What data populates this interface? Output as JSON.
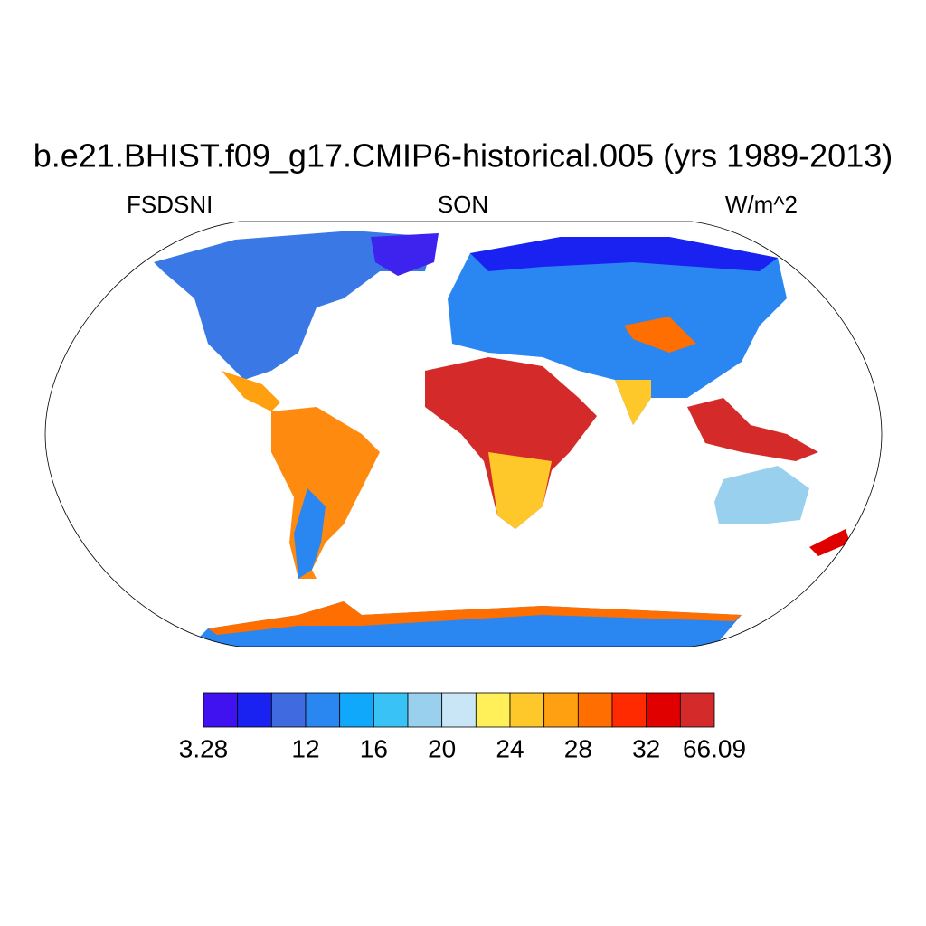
{
  "title": "b.e21.BHIST.f09_g17.CMIP6-historical.005 (yrs 1989-2013)",
  "left_string": "FSDSNI",
  "center_string": "SON",
  "right_string": "W/m^2",
  "colorbar": {
    "colors": [
      "#4012f0",
      "#1a22f2",
      "#3f6ae0",
      "#2a86f0",
      "#0fa8fa",
      "#38c2f5",
      "#98d0ee",
      "#c8e6f6",
      "#fff05a",
      "#ffc82a",
      "#ffa010",
      "#ff6e00",
      "#ff2a00",
      "#e00000",
      "#d42a2a"
    ],
    "levels": [
      3.28,
      null,
      null,
      12,
      null,
      16,
      null,
      20,
      null,
      24,
      null,
      28,
      null,
      32,
      null,
      66.09
    ]
  }
}
